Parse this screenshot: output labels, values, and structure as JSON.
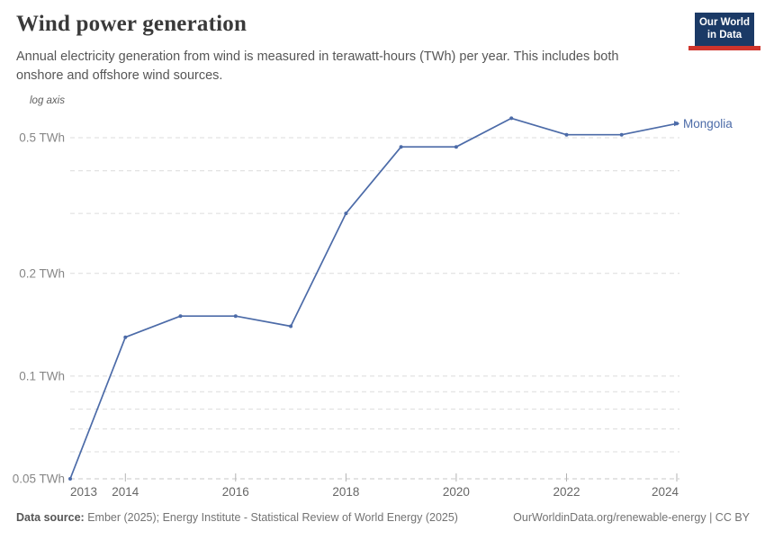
{
  "header": {
    "title": "Wind power generation",
    "subtitle": "Annual electricity generation from wind is measured in terawatt-hours (TWh) per year. This includes both onshore and offshore wind sources."
  },
  "logo": {
    "line1": "Our World",
    "line2": "in Data",
    "bg_color": "#1b3a66",
    "stripe_color": "#cf342c"
  },
  "chart_data": {
    "type": "line",
    "title": "Wind power generation",
    "unit": "TWh",
    "axis_note": "log axis",
    "yscale": "log",
    "x": [
      2013,
      2014,
      2015,
      2016,
      2017,
      2018,
      2019,
      2020,
      2021,
      2022,
      2023,
      2024
    ],
    "series": [
      {
        "name": "Mongolia",
        "color": "#4c6ba8",
        "values": [
          0.05,
          0.13,
          0.15,
          0.15,
          0.14,
          0.3,
          0.47,
          0.47,
          0.57,
          0.51,
          0.51,
          0.55
        ]
      }
    ],
    "xlim": [
      2013,
      2024
    ],
    "ylim": [
      0.05,
      0.6
    ],
    "grid": true,
    "legend": "end-of-line-label",
    "y_gridlines": [
      0.05,
      0.06,
      0.07,
      0.08,
      0.09,
      0.1,
      0.2,
      0.3,
      0.4,
      0.5
    ],
    "y_labeled_ticks": [
      0.05,
      0.1,
      0.2,
      0.5
    ],
    "y_tick_suffix": " TWh",
    "x_labeled_ticks": [
      2013,
      2014,
      2016,
      2018,
      2020,
      2022,
      2024
    ],
    "x_tick_marks": [
      2014,
      2016,
      2018,
      2020,
      2022,
      2024
    ]
  },
  "footer": {
    "source_label": "Data source:",
    "source_text": " Ember (2025); Energy Institute - Statistical Review of World Energy (2025)",
    "credit": "OurWorldinData.org/renewable-energy | CC BY"
  }
}
